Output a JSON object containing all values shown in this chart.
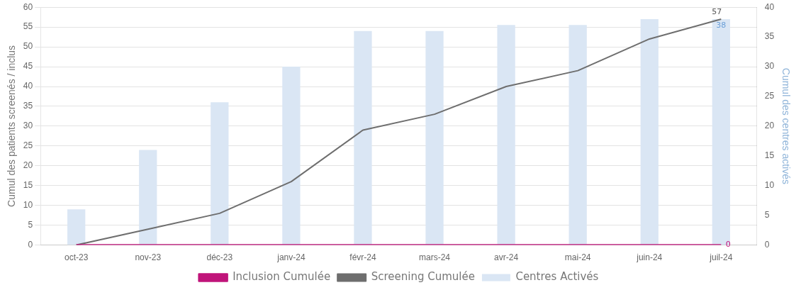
{
  "chart_data": {
    "type": "bar",
    "ylabel": "Cumul des patients screenés / inclus",
    "y2label": "Cumul des centres activés",
    "categories": [
      "oct-23",
      "nov-23",
      "déc-23",
      "janv-24",
      "févr-24",
      "mars-24",
      "avr-24",
      "mai-24",
      "juin-24",
      "juil-24"
    ],
    "series": [
      {
        "name": "Centres Activés",
        "axis": "y2",
        "color": "#dae6f4",
        "values": [
          6,
          16,
          24,
          30,
          36,
          36,
          37,
          37,
          38,
          38
        ],
        "value_labels": [
          null,
          null,
          null,
          null,
          null,
          null,
          null,
          null,
          null,
          "38"
        ]
      },
      {
        "name": "Screening Cumulée",
        "type": "line",
        "color": "#6e6e6e",
        "values": [
          0,
          4,
          8,
          16,
          29,
          33,
          40,
          44,
          52,
          57
        ],
        "value_labels": [
          null,
          null,
          null,
          null,
          null,
          null,
          null,
          null,
          null,
          "57"
        ]
      },
      {
        "name": "Inclusion Cumulée",
        "type": "line",
        "color": "#c0147a",
        "values": [
          0,
          0,
          0,
          0,
          0,
          0,
          0,
          0,
          0,
          0
        ],
        "value_labels": [
          null,
          null,
          null,
          null,
          null,
          null,
          null,
          null,
          null,
          "0"
        ]
      }
    ],
    "ylim": [
      0,
      60
    ],
    "yticks": [
      0,
      5,
      10,
      15,
      20,
      25,
      30,
      35,
      40,
      45,
      50,
      55,
      60
    ],
    "y2lim": [
      0,
      40
    ],
    "y2ticks": [
      0,
      5,
      10,
      15,
      20,
      25,
      30,
      35,
      40
    ],
    "grid": "y",
    "legend": "bottom",
    "marker": "none",
    "line_style": "solid"
  }
}
